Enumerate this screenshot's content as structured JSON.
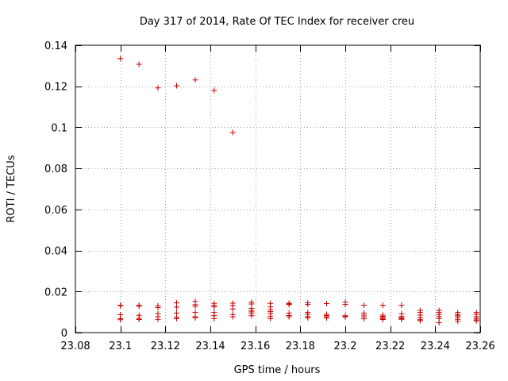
{
  "chart_data": {
    "type": "scatter",
    "title": "Day 317 of 2014, Rate Of TEC Index for receiver creu",
    "xlabel": "GPS time / hours",
    "ylabel": "ROTI / TECUs",
    "xlim": [
      23.08,
      23.26
    ],
    "ylim": [
      0,
      0.14
    ],
    "xticks": [
      23.08,
      23.1,
      23.12,
      23.14,
      23.16,
      23.18,
      23.2,
      23.22,
      23.24,
      23.26
    ],
    "xtick_labels": [
      "23.08",
      "23.1",
      "23.12",
      "23.14",
      "23.16",
      "23.18",
      "23.2",
      "23.22",
      "23.24",
      "23.26"
    ],
    "yticks": [
      0,
      0.02,
      0.04,
      0.06,
      0.08,
      0.1,
      0.12,
      0.14
    ],
    "ytick_labels": [
      "0",
      "0.02",
      "0.04",
      "0.06",
      "0.08",
      "0.1",
      "0.12",
      "0.14"
    ],
    "grid": true,
    "marker": "+",
    "color": "#cc0000",
    "series": [
      {
        "name": "ROTI",
        "points": [
          [
            23.1,
            0.1335
          ],
          [
            23.1,
            0.0133
          ],
          [
            23.1,
            0.0131
          ],
          [
            23.1,
            0.0087
          ],
          [
            23.1,
            0.0068
          ],
          [
            23.1,
            0.0063
          ],
          [
            23.1083,
            0.1307
          ],
          [
            23.1083,
            0.0133
          ],
          [
            23.1083,
            0.0129
          ],
          [
            23.1083,
            0.0084
          ],
          [
            23.1083,
            0.0069
          ],
          [
            23.1083,
            0.0064
          ],
          [
            23.1167,
            0.1192
          ],
          [
            23.1167,
            0.0131
          ],
          [
            23.1167,
            0.0122
          ],
          [
            23.1167,
            0.0092
          ],
          [
            23.1167,
            0.0078
          ],
          [
            23.1167,
            0.0065
          ],
          [
            23.125,
            0.1203
          ],
          [
            23.125,
            0.0145
          ],
          [
            23.125,
            0.0124
          ],
          [
            23.125,
            0.0095
          ],
          [
            23.125,
            0.0075
          ],
          [
            23.125,
            0.0068
          ],
          [
            23.1333,
            0.1231
          ],
          [
            23.1333,
            0.0152
          ],
          [
            23.1333,
            0.0136
          ],
          [
            23.1333,
            0.0128
          ],
          [
            23.1333,
            0.0098
          ],
          [
            23.1333,
            0.0078
          ],
          [
            23.1333,
            0.0072
          ],
          [
            23.1417,
            0.118
          ],
          [
            23.1417,
            0.0142
          ],
          [
            23.1417,
            0.0133
          ],
          [
            23.1417,
            0.0125
          ],
          [
            23.1417,
            0.0098
          ],
          [
            23.1417,
            0.0082
          ],
          [
            23.1417,
            0.0068
          ],
          [
            23.15,
            0.0975
          ],
          [
            23.15,
            0.0143
          ],
          [
            23.15,
            0.0132
          ],
          [
            23.15,
            0.0115
          ],
          [
            23.15,
            0.0088
          ],
          [
            23.15,
            0.0077
          ],
          [
            23.1583,
            0.0148
          ],
          [
            23.1583,
            0.0139
          ],
          [
            23.1583,
            0.0118
          ],
          [
            23.1583,
            0.0108
          ],
          [
            23.1583,
            0.0101
          ],
          [
            23.1583,
            0.0093
          ],
          [
            23.1583,
            0.0082
          ],
          [
            23.1667,
            0.0142
          ],
          [
            23.1667,
            0.0125
          ],
          [
            23.1667,
            0.0112
          ],
          [
            23.1667,
            0.0102
          ],
          [
            23.1667,
            0.0092
          ],
          [
            23.1667,
            0.0079
          ],
          [
            23.1667,
            0.0068
          ],
          [
            23.175,
            0.0143
          ],
          [
            23.175,
            0.0139
          ],
          [
            23.175,
            0.0137
          ],
          [
            23.175,
            0.0095
          ],
          [
            23.175,
            0.0083
          ],
          [
            23.175,
            0.0077
          ],
          [
            23.1833,
            0.0145
          ],
          [
            23.1833,
            0.0137
          ],
          [
            23.1833,
            0.0098
          ],
          [
            23.1833,
            0.0089
          ],
          [
            23.1833,
            0.0078
          ],
          [
            23.1833,
            0.0072
          ],
          [
            23.1917,
            0.0141
          ],
          [
            23.1917,
            0.0089
          ],
          [
            23.1917,
            0.0083
          ],
          [
            23.1917,
            0.0077
          ],
          [
            23.1917,
            0.0071
          ],
          [
            23.2,
            0.0148
          ],
          [
            23.2,
            0.0137
          ],
          [
            23.2,
            0.0082
          ],
          [
            23.2,
            0.0078
          ],
          [
            23.2,
            0.0076
          ],
          [
            23.2083,
            0.0133
          ],
          [
            23.2083,
            0.0095
          ],
          [
            23.2083,
            0.0085
          ],
          [
            23.2083,
            0.0077
          ],
          [
            23.2083,
            0.0067
          ],
          [
            23.2167,
            0.0133
          ],
          [
            23.2167,
            0.0085
          ],
          [
            23.2167,
            0.0079
          ],
          [
            23.2167,
            0.0075
          ],
          [
            23.2167,
            0.0068
          ],
          [
            23.2167,
            0.0064
          ],
          [
            23.225,
            0.0133
          ],
          [
            23.225,
            0.0092
          ],
          [
            23.225,
            0.0079
          ],
          [
            23.225,
            0.0072
          ],
          [
            23.225,
            0.0068
          ],
          [
            23.225,
            0.0065
          ],
          [
            23.2333,
            0.0108
          ],
          [
            23.2333,
            0.0098
          ],
          [
            23.2333,
            0.0085
          ],
          [
            23.2333,
            0.0072
          ],
          [
            23.2333,
            0.0063
          ],
          [
            23.2333,
            0.0058
          ],
          [
            23.2417,
            0.0108
          ],
          [
            23.2417,
            0.0098
          ],
          [
            23.2417,
            0.0088
          ],
          [
            23.2417,
            0.0078
          ],
          [
            23.2417,
            0.0068
          ],
          [
            23.2417,
            0.0048
          ],
          [
            23.25,
            0.0098
          ],
          [
            23.25,
            0.0088
          ],
          [
            23.25,
            0.0082
          ],
          [
            23.25,
            0.0075
          ],
          [
            23.25,
            0.0065
          ],
          [
            23.25,
            0.0055
          ],
          [
            23.2583,
            0.0098
          ],
          [
            23.2583,
            0.0089
          ],
          [
            23.2583,
            0.0078
          ],
          [
            23.2583,
            0.0069
          ],
          [
            23.2583,
            0.0062
          ],
          [
            23.2583,
            0.0057
          ]
        ]
      }
    ]
  }
}
